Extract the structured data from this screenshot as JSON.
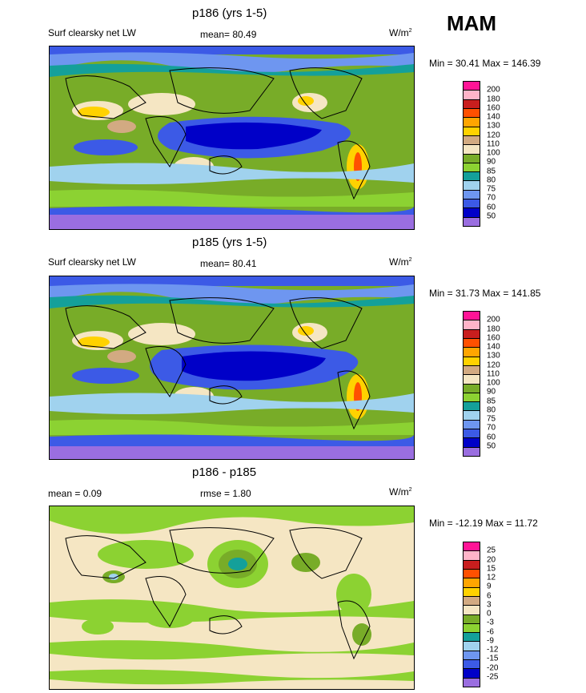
{
  "season": "MAM",
  "panels": [
    {
      "title": "p186 (yrs 1-5)",
      "left_label": "Surf clearsky net LW",
      "center_label": "mean=  80.49",
      "units_base": "W/m",
      "units_sup": "2",
      "minmax": "Min =  30.41 Max = 146.39",
      "levels": [
        "200",
        "180",
        "160",
        "140",
        "130",
        "120",
        "110",
        "100",
        "90",
        "85",
        "80",
        "75",
        "70",
        "60",
        "50"
      ]
    },
    {
      "title": "p185 (yrs 1-5)",
      "left_label": "Surf clearsky net LW",
      "center_label": "mean=  80.41",
      "units_base": "W/m",
      "units_sup": "2",
      "minmax": "Min =  31.73 Max = 141.85",
      "levels": [
        "200",
        "180",
        "160",
        "140",
        "130",
        "120",
        "110",
        "100",
        "90",
        "85",
        "80",
        "75",
        "70",
        "60",
        "50"
      ]
    },
    {
      "title": "p186 - p185",
      "left_label": "mean =   0.09",
      "center_label": "rmse =   1.80",
      "units_base": "W/m",
      "units_sup": "2",
      "minmax": "Min = -12.19 Max =  11.72",
      "levels": [
        "25",
        "20",
        "15",
        "12",
        "9",
        "6",
        "3",
        "0",
        "-3",
        "-6",
        "-9",
        "-12",
        "-15",
        "-20",
        "-25"
      ]
    }
  ],
  "colorbar_colors": [
    "#9a6ee0",
    "#0000c8",
    "#3c5ae6",
    "#6e96f0",
    "#a0d2ee",
    "#14a09a",
    "#8cd232",
    "#78ac28",
    "#f5e6c3",
    "#d2aa82",
    "#ffd200",
    "#ffa500",
    "#ff5000",
    "#c81e1e",
    "#ffb4c8",
    "#ff1496"
  ]
}
